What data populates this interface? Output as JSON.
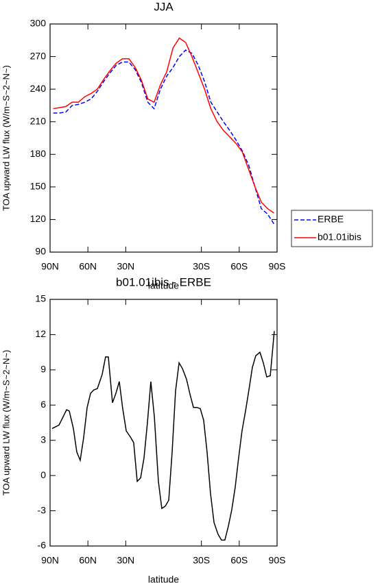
{
  "chart_data": [
    {
      "type": "line",
      "title": "JJA",
      "xlabel": "latitude",
      "ylabel": "TOA upward LW flux (W/m~S~2~N~)",
      "x": [
        87.5,
        82.5,
        77.5,
        72.5,
        67.5,
        62.5,
        57.5,
        52.5,
        47.5,
        42.5,
        37.5,
        32.5,
        27.5,
        22.5,
        17.5,
        12.5,
        7.5,
        2.5,
        -2.5,
        -7.5,
        -12.5,
        -17.5,
        -22.5,
        -27.5,
        -32.5,
        -37.5,
        -42.5,
        -47.5,
        -52.5,
        -57.5,
        -62.5,
        -67.5,
        -72.5,
        -77.5,
        -82.5,
        -87.5
      ],
      "series": [
        {
          "name": "ERBE",
          "color": "#0000ff",
          "line_style": "dashed",
          "values": [
            218,
            218,
            219,
            225,
            226,
            228,
            231,
            238,
            247,
            255,
            262,
            265,
            265,
            258,
            246,
            228,
            222,
            240,
            252,
            260,
            270,
            276,
            273,
            262,
            247,
            228,
            219,
            210,
            202,
            193,
            183,
            170,
            150,
            130,
            125,
            116
          ]
        },
        {
          "name": "b01.01ibis",
          "color": "#ff0000",
          "line_style": "solid",
          "values": [
            222,
            223,
            224,
            228,
            228,
            233,
            236,
            240,
            249,
            257,
            264,
            268,
            268,
            260,
            248,
            231,
            228,
            244,
            256,
            278,
            287,
            283,
            270,
            255,
            240,
            222,
            210,
            202,
            196,
            190,
            182,
            166,
            150,
            136,
            130,
            126
          ]
        }
      ],
      "xlim": [
        90,
        -90
      ],
      "xticks": [
        {
          "value": 90,
          "label": "90N"
        },
        {
          "value": 60,
          "label": "60N"
        },
        {
          "value": 30,
          "label": "30N"
        },
        {
          "value": -30,
          "label": "30S"
        },
        {
          "value": -60,
          "label": "60S"
        },
        {
          "value": -90,
          "label": "90S"
        }
      ],
      "ylim": [
        90,
        300
      ],
      "yticks": [
        90,
        120,
        150,
        180,
        210,
        240,
        270,
        300
      ],
      "legend": "right"
    },
    {
      "type": "line",
      "title": "b01.01ibis - ERBE",
      "xlabel": "latitude",
      "ylabel": "TOA upward LW flux (W/m~S~2~N~)",
      "x": [
        88.4,
        82.9,
        76.9,
        74.8,
        71.5,
        68.8,
        66.1,
        63.4,
        60.6,
        57.9,
        55.2,
        52.5,
        48.7,
        46.0,
        43.8,
        40.5,
        37.8,
        35.1,
        32.4,
        29.6,
        26.4,
        23.7,
        20.9,
        18.2,
        15.5,
        12.8,
        10.1,
        7.3,
        4.1,
        1.4,
        -1.4,
        -4.1,
        -6.8,
        -9.5,
        -12.3,
        -15.0,
        -18.2,
        -21.0,
        -23.7,
        -26.4,
        -29.1,
        -31.8,
        -34.5,
        -37.2,
        -40.0,
        -43.2,
        -45.9,
        -48.6,
        -51.4,
        -54.1,
        -56.8,
        -59.5,
        -62.2,
        -65.0,
        -67.7,
        -70.4,
        -73.1,
        -76.4,
        -79.1,
        -81.8,
        -84.6,
        -87.8
      ],
      "series": [
        {
          "color": "#000000",
          "line_style": "solid",
          "values": [
            4,
            4.3,
            5.6,
            5.5,
            4,
            2,
            1.3,
            3.2,
            5.8,
            7,
            7.3,
            7.4,
            8.6,
            10.1,
            10.1,
            6.2,
            7,
            8,
            5.7,
            3.8,
            3.3,
            2.8,
            -0.5,
            -0.2,
            1.5,
            4.5,
            8,
            5,
            -0.5,
            -2.8,
            -2.6,
            -2.1,
            2,
            7.2,
            9.6,
            9.1,
            8.2,
            6.9,
            5.8,
            5.8,
            5.7,
            4.7,
            2,
            -1.5,
            -4,
            -5,
            -5.5,
            -5.5,
            -4.3,
            -2.9,
            -1,
            1.5,
            3.8,
            5.5,
            7.3,
            9.2,
            10.2,
            10.5,
            9.6,
            8.4,
            8.5,
            12.3
          ]
        }
      ],
      "xlim": [
        90,
        -90
      ],
      "xticks": [
        {
          "value": 90,
          "label": "90N"
        },
        {
          "value": 60,
          "label": "60N"
        },
        {
          "value": 30,
          "label": "30N"
        },
        {
          "value": -30,
          "label": "30S"
        },
        {
          "value": -60,
          "label": "60S"
        },
        {
          "value": -90,
          "label": "90S"
        }
      ],
      "ylim": [
        -6,
        15
      ],
      "yticks": [
        -6,
        -3,
        0,
        3,
        6,
        9,
        12,
        15
      ]
    }
  ]
}
